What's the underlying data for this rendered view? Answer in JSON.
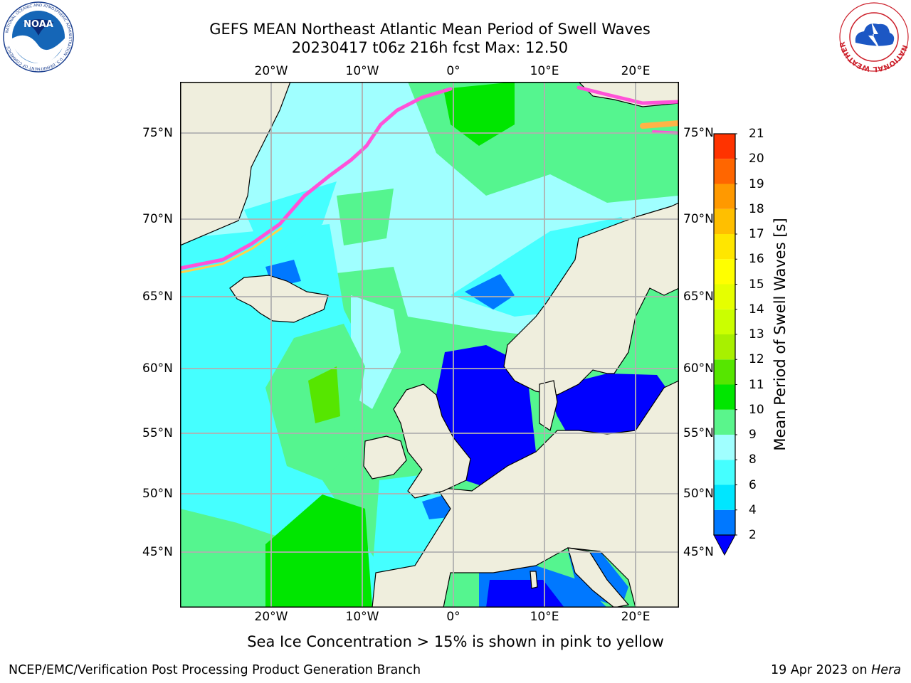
{
  "header": {
    "title_line1": "GEFS MEAN Northeast Atlantic Mean Period of Swell Waves",
    "title_line2": "20230417 t06z 216h fcst   Max: 12.50"
  },
  "logos": {
    "left": {
      "text": "NOAA",
      "ring_text": "NATIONAL OCEANIC AND ATMOSPHERIC ADMINISTRATION · U.S. DEPARTMENT OF COMMERCE"
    },
    "right": {
      "ring_text": "NATIONAL WEATHER SERVICE"
    }
  },
  "map": {
    "lon_ticks_top": [
      "20°W",
      "10°W",
      "0°",
      "10°E",
      "20°E"
    ],
    "lon_ticks_bottom": [
      "20°W",
      "10°W",
      "0°",
      "10°E",
      "20°E"
    ],
    "lat_ticks_left": [
      "75°N",
      "70°N",
      "65°N",
      "60°N",
      "55°N",
      "50°N",
      "45°N"
    ],
    "lat_ticks_right": [
      "75°N",
      "70°N",
      "65°N",
      "60°N",
      "55°N",
      "50°N",
      "45°N"
    ],
    "colors": {
      "land": "#efeedd",
      "ocean_default": "#55f58f",
      "grid": "#b0b0b0"
    }
  },
  "colorbar": {
    "label": "Mean Period of Swell Waves [s]",
    "ticks": [
      "2",
      "4",
      "6",
      "8",
      "9",
      "10",
      "11",
      "12",
      "13",
      "14",
      "15",
      "16",
      "17",
      "18",
      "19",
      "20",
      "21"
    ],
    "colors": [
      "#0078ff",
      "#00e6ff",
      "#45ffff",
      "#a0ffff",
      "#5af58c",
      "#00e600",
      "#56e600",
      "#a8f000",
      "#cbff00",
      "#e6ff00",
      "#ffff00",
      "#ffe600",
      "#ffbf00",
      "#ff9900",
      "#ff6600",
      "#ff3300"
    ],
    "under_color": "#0000ff"
  },
  "caption": "Sea Ice Concentration > 15% is shown in pink to yellow",
  "footer": {
    "left": "NCEP/EMC/Verification Post Processing Product Generation Branch",
    "right_date": "19 Apr 2023 on",
    "right_host": "Hera"
  }
}
